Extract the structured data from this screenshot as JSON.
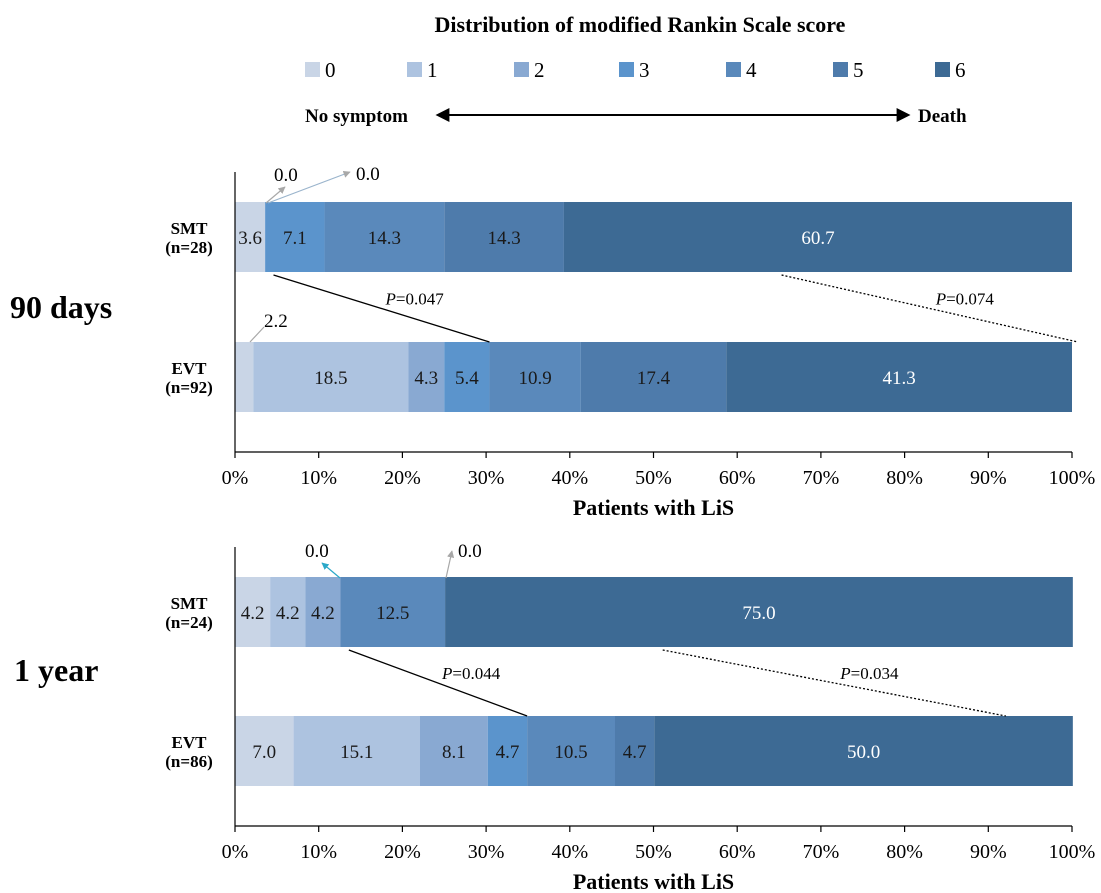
{
  "legend": {
    "title": "Distribution of modified Rankin Scale score",
    "items": [
      {
        "label": "0",
        "color": "#c9d5e6"
      },
      {
        "label": "1",
        "color": "#adc3e0"
      },
      {
        "label": "2",
        "color": "#89a9d2"
      },
      {
        "label": "3",
        "color": "#5b94cc"
      },
      {
        "label": "4",
        "color": "#5a89bb"
      },
      {
        "label": "5",
        "color": "#4e7bab"
      },
      {
        "label": "6",
        "color": "#3d6a94"
      }
    ],
    "left_label": "No symptom",
    "right_label": "Death"
  },
  "chart_data": [
    {
      "type": "bar",
      "orientation": "horizontal",
      "stacked": true,
      "panel_label": "90 days",
      "xlabel": "Patients with LiS",
      "xlim": [
        0,
        100
      ],
      "xticks": [
        "0%",
        "10%",
        "20%",
        "30%",
        "40%",
        "50%",
        "60%",
        "70%",
        "80%",
        "90%",
        "100%"
      ],
      "categories": [
        "SMT\n(n=28)",
        "EVT\n(n=92)"
      ],
      "category_lines": [
        [
          "SMT",
          "(n=28)"
        ],
        [
          "EVT",
          "(n=92)"
        ]
      ],
      "series": [
        {
          "name": "0",
          "values": [
            3.6,
            2.2
          ]
        },
        {
          "name": "1",
          "values": [
            0.0,
            18.5
          ]
        },
        {
          "name": "2",
          "values": [
            0.0,
            4.3
          ]
        },
        {
          "name": "3",
          "values": [
            7.1,
            5.4
          ]
        },
        {
          "name": "4",
          "values": [
            14.3,
            10.9
          ]
        },
        {
          "name": "5",
          "values": [
            14.3,
            17.4
          ]
        },
        {
          "name": "6",
          "values": [
            60.7,
            41.3
          ]
        }
      ],
      "value_labels": [
        [
          "3.6",
          "0.0",
          "0.0",
          "7.1",
          "14.3",
          "14.3",
          "60.7"
        ],
        [
          "2.2",
          "18.5",
          "4.3",
          "5.4",
          "10.9",
          "17.4",
          "41.3"
        ]
      ],
      "comparisons": [
        {
          "label_prefix": "P",
          "label_value": "=0.047",
          "smt_cut": 3,
          "evt_cut": 4,
          "style": "solid"
        },
        {
          "label_prefix": "P",
          "label_value": "=0.074",
          "smt_cut": 6,
          "evt_cut": 6,
          "style": "dotted"
        }
      ]
    },
    {
      "type": "bar",
      "orientation": "horizontal",
      "stacked": true,
      "panel_label": "1 year",
      "xlabel": "Patients with LiS",
      "xlim": [
        0,
        100
      ],
      "xticks": [
        "0%",
        "10%",
        "20%",
        "30%",
        "40%",
        "50%",
        "60%",
        "70%",
        "80%",
        "90%",
        "100%"
      ],
      "categories": [
        "SMT\n(n=24)",
        "EVT\n(n=86)"
      ],
      "category_lines": [
        [
          "SMT",
          "(n=24)"
        ],
        [
          "EVT",
          "(n=86)"
        ]
      ],
      "series": [
        {
          "name": "0",
          "values": [
            4.2,
            7.0
          ]
        },
        {
          "name": "1",
          "values": [
            4.2,
            15.1
          ]
        },
        {
          "name": "2",
          "values": [
            4.2,
            8.1
          ]
        },
        {
          "name": "3",
          "values": [
            0.0,
            4.7
          ]
        },
        {
          "name": "4",
          "values": [
            12.5,
            10.5
          ]
        },
        {
          "name": "5",
          "values": [
            0.0,
            4.7
          ]
        },
        {
          "name": "6",
          "values": [
            75.0,
            50.0
          ]
        }
      ],
      "value_labels": [
        [
          "4.2",
          "4.2",
          "4.2",
          "0.0",
          "12.5",
          "0.0",
          "75.0"
        ],
        [
          "7.0",
          "15.1",
          "8.1",
          "4.7",
          "10.5",
          "4.7",
          "50.0"
        ]
      ],
      "comparisons": [
        {
          "label_prefix": "P",
          "label_value": "=0.044",
          "smt_cut": 3,
          "evt_cut": 4,
          "style": "solid"
        },
        {
          "label_prefix": "P",
          "label_value": "=0.034",
          "smt_cut": 6,
          "evt_cut": 6,
          "style": "dotted"
        }
      ]
    }
  ]
}
